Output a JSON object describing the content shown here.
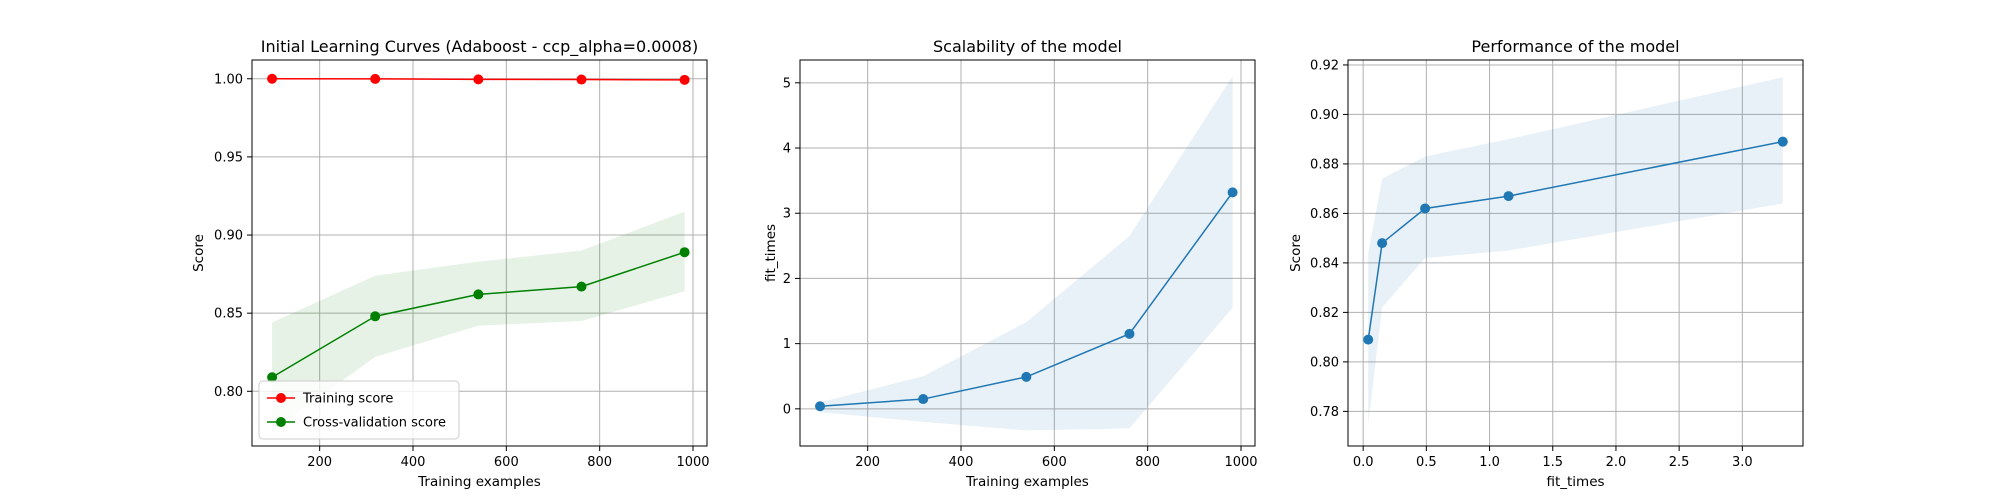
{
  "chart_data": [
    {
      "type": "line",
      "title": "Initial Learning Curves (Adaboost - ccp_alpha=0.0008)",
      "xlabel": "Training examples",
      "ylabel": "Score",
      "xlim": [
        55,
        1030
      ],
      "ylim": [
        0.765,
        1.012
      ],
      "xticks": [
        200,
        400,
        600,
        800,
        1000
      ],
      "xtick_labels": [
        "200",
        "400",
        "600",
        "800",
        "1000"
      ],
      "yticks": [
        0.8,
        0.85,
        0.9,
        0.95,
        1.0
      ],
      "ytick_labels": [
        "0.80",
        "0.85",
        "0.90",
        "0.95",
        "1.00"
      ],
      "grid": true,
      "legend": "lower-left",
      "x": [
        98,
        319,
        540,
        761,
        982
      ],
      "series": [
        {
          "name": "Training score",
          "color": "#ff0000",
          "values": [
            1.0,
            0.9999,
            0.9996,
            0.9995,
            0.9993
          ],
          "band_low": [
            1.0,
            0.9999,
            0.9996,
            0.9995,
            0.9993
          ],
          "band_high": [
            1.0,
            1.0,
            1.0,
            1.0,
            1.0
          ]
        },
        {
          "name": "Cross-validation score",
          "color": "#008000",
          "values": [
            0.809,
            0.848,
            0.862,
            0.867,
            0.889
          ],
          "band_low": [
            0.775,
            0.822,
            0.842,
            0.845,
            0.864
          ],
          "band_high": [
            0.844,
            0.874,
            0.883,
            0.89,
            0.915
          ]
        }
      ]
    },
    {
      "type": "line",
      "title": "Scalability of the model",
      "xlabel": "Training examples",
      "ylabel": "fit_times",
      "xlim": [
        55,
        1030
      ],
      "ylim": [
        -0.57,
        5.35
      ],
      "xticks": [
        200,
        400,
        600,
        800,
        1000
      ],
      "xtick_labels": [
        "200",
        "400",
        "600",
        "800",
        "1000"
      ],
      "yticks": [
        0,
        1,
        2,
        3,
        4,
        5
      ],
      "ytick_labels": [
        "0",
        "1",
        "2",
        "3",
        "4",
        "5"
      ],
      "grid": true,
      "x": [
        98,
        319,
        540,
        761,
        982
      ],
      "series": [
        {
          "color": "#1f77b4",
          "values": [
            0.04,
            0.15,
            0.49,
            1.15,
            3.32
          ],
          "band_low": [
            -0.05,
            -0.2,
            -0.33,
            -0.3,
            1.55
          ],
          "band_high": [
            0.1,
            0.5,
            1.33,
            2.65,
            5.1
          ]
        }
      ]
    },
    {
      "type": "line",
      "title": "Performance of the model",
      "xlabel": "fit_times",
      "ylabel": "Score",
      "xlim": [
        -0.12,
        3.48
      ],
      "ylim": [
        0.766,
        0.922
      ],
      "xticks": [
        0.0,
        0.5,
        1.0,
        1.5,
        2.0,
        2.5,
        3.0
      ],
      "xtick_labels": [
        "0.0",
        "0.5",
        "1.0",
        "1.5",
        "2.0",
        "2.5",
        "3.0"
      ],
      "yticks": [
        0.78,
        0.8,
        0.82,
        0.84,
        0.86,
        0.88,
        0.9,
        0.92
      ],
      "ytick_labels": [
        "0.78",
        "0.80",
        "0.82",
        "0.84",
        "0.86",
        "0.88",
        "0.90",
        "0.92"
      ],
      "grid": true,
      "x": [
        0.04,
        0.15,
        0.49,
        1.15,
        3.32
      ],
      "series": [
        {
          "color": "#1f77b4",
          "values": [
            0.809,
            0.848,
            0.862,
            0.867,
            0.889
          ],
          "band_low": [
            0.775,
            0.822,
            0.842,
            0.845,
            0.864
          ],
          "band_high": [
            0.844,
            0.874,
            0.883,
            0.89,
            0.915
          ]
        }
      ]
    }
  ]
}
